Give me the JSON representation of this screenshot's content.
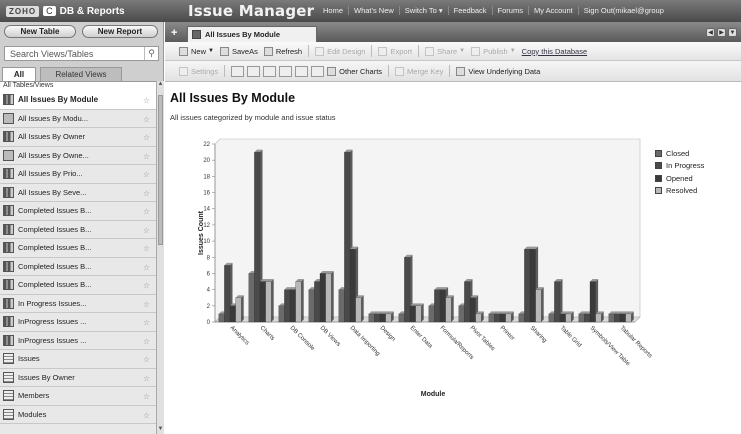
{
  "app": {
    "logo_text": "ZOHO",
    "logo_letter": "C",
    "section": "DB & Reports",
    "title": "Issue Manager"
  },
  "topnav": [
    "Home",
    "What's New",
    "Switch To ▾",
    "Feedback",
    "Forums",
    "My Account",
    "Sign Out(mikael@group"
  ],
  "left": {
    "new_table": "New Table",
    "new_report": "New Report",
    "search_placeholder": "Search Views/Tables",
    "tab_all": "All",
    "tab_related": "Related Views",
    "list_header": "All Tables/Views",
    "items": [
      {
        "label": "All Issues By Module",
        "icon": "chart"
      },
      {
        "label": "All Issues By Modu...",
        "icon": "light"
      },
      {
        "label": "All Issues By Owner",
        "icon": "chart"
      },
      {
        "label": "All Issues By Owne...",
        "icon": "light"
      },
      {
        "label": "All Issues By Prio...",
        "icon": "chart"
      },
      {
        "label": "All Issues By Seve...",
        "icon": "chart"
      },
      {
        "label": "Completed Issues B...",
        "icon": "chart"
      },
      {
        "label": "Completed Issues B...",
        "icon": "chart"
      },
      {
        "label": "Completed Issues B...",
        "icon": "chart"
      },
      {
        "label": "Completed Issues B...",
        "icon": "chart"
      },
      {
        "label": "Completed Issues B...",
        "icon": "chart"
      },
      {
        "label": "In Progress Issues...",
        "icon": "chart"
      },
      {
        "label": "InProgress Issues ...",
        "icon": "chart"
      },
      {
        "label": "InProgress Issues ...",
        "icon": "chart"
      },
      {
        "label": "Issues",
        "icon": "table"
      },
      {
        "label": "Issues By Owner",
        "icon": "table"
      },
      {
        "label": "Members",
        "icon": "table"
      },
      {
        "label": "Modules",
        "icon": "table"
      }
    ]
  },
  "tab": {
    "label": "All Issues By Module"
  },
  "toolbar1": {
    "new": "New",
    "save_as": "SaveAs",
    "refresh": "Refresh",
    "edit_design": "Edit Design",
    "export": "Export",
    "share": "Share",
    "publish": "Publish",
    "copy_db": "Copy this Database"
  },
  "toolbar2": {
    "settings": "Settings",
    "other_charts": "Other Charts",
    "merge_key": "Merge Key",
    "view_data": "View Underlying Data"
  },
  "page": {
    "title": "All Issues By Module",
    "subtitle": "All issues categorized by module and issue status"
  },
  "colors": {
    "closed": "#6a6a6a",
    "in_progress": "#4a4a4a",
    "opened": "#3a3a3a",
    "resolved": "#b8b8b8"
  },
  "chart_data": {
    "type": "bar",
    "xlabel": "Module",
    "ylabel": "Issues Count",
    "ylim": [
      0,
      22
    ],
    "yticks": [
      0,
      2,
      4,
      6,
      8,
      10,
      12,
      14,
      16,
      18,
      20,
      22
    ],
    "grid": false,
    "legend_position": "right",
    "categories": [
      "Analytics",
      "Charts",
      "DB Console",
      "DB Views",
      "Data Importing",
      "Design",
      "Enter Data",
      "Formula/Reports",
      "Pivot Tables",
      "Printer",
      "Sharing",
      "Table Grid",
      "Symbols/View Table",
      "Tabular Reports"
    ],
    "series": [
      {
        "name": "Closed",
        "values": [
          1,
          6,
          2,
          4,
          4,
          1,
          1,
          2,
          2,
          1,
          1,
          1,
          1,
          1
        ]
      },
      {
        "name": "In Progress",
        "values": [
          7,
          21,
          4,
          5,
          21,
          1,
          8,
          4,
          5,
          1,
          9,
          5,
          1,
          1
        ]
      },
      {
        "name": "Opened",
        "values": [
          2,
          5,
          4,
          6,
          9,
          1,
          2,
          4,
          3,
          1,
          9,
          1,
          5,
          1
        ]
      },
      {
        "name": "Resolved",
        "values": [
          3,
          5,
          5,
          6,
          3,
          1,
          2,
          3,
          1,
          1,
          4,
          1,
          1,
          1
        ]
      }
    ]
  }
}
